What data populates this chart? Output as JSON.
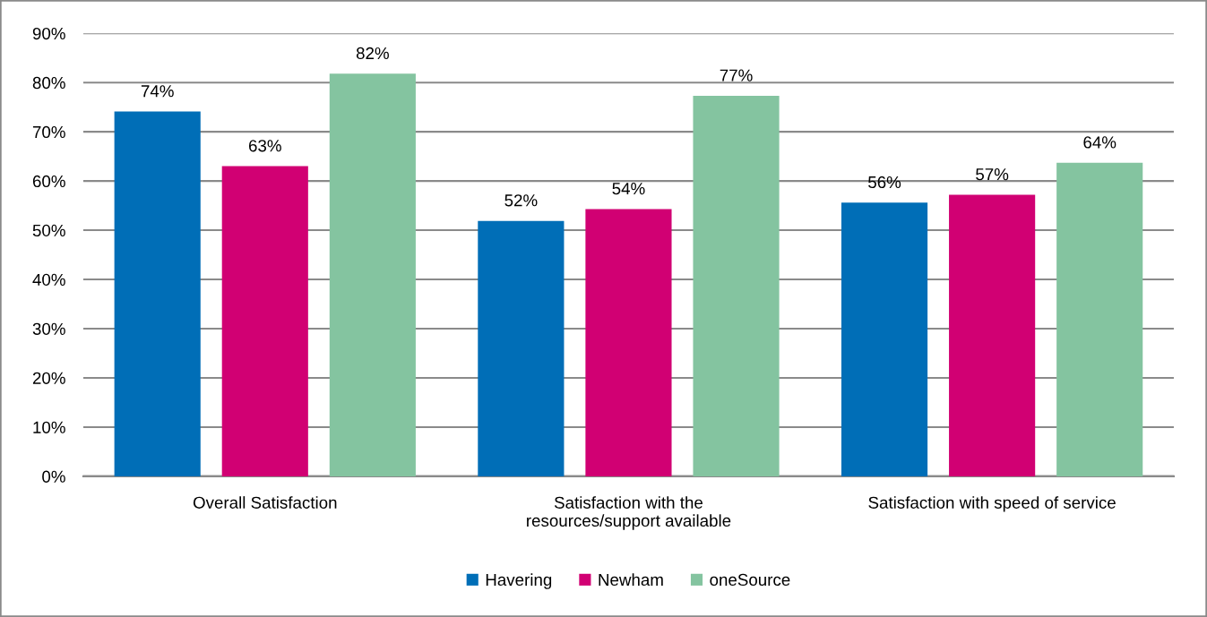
{
  "chart_data": {
    "type": "bar",
    "categories": [
      "Overall Satisfaction",
      "Satisfaction with the\nresources/support available",
      "Satisfaction with speed of service"
    ],
    "series": [
      {
        "name": "Havering",
        "color": "#006eb7",
        "values": [
          74.1,
          51.9,
          55.6
        ],
        "value_labels": [
          "74%",
          "52%",
          "56%"
        ]
      },
      {
        "name": "Newham",
        "color": "#d10073",
        "values": [
          63.0,
          54.3,
          57.2
        ],
        "value_labels": [
          "63%",
          "54%",
          "57%"
        ]
      },
      {
        "name": "oneSource",
        "color": "#84c4a0",
        "values": [
          81.8,
          77.3,
          63.7
        ],
        "value_labels": [
          "82%",
          "77%",
          "64%"
        ]
      }
    ],
    "ylim": [
      0,
      90
    ],
    "yticks": [
      {
        "value": 0,
        "label": "0%"
      },
      {
        "value": 10,
        "label": "10%"
      },
      {
        "value": 20,
        "label": "20%"
      },
      {
        "value": 30,
        "label": "30%"
      },
      {
        "value": 40,
        "label": "40%"
      },
      {
        "value": 50,
        "label": "50%"
      },
      {
        "value": 60,
        "label": "60%"
      },
      {
        "value": 70,
        "label": "70%"
      },
      {
        "value": 80,
        "label": "80%"
      },
      {
        "value": 90,
        "label": "90%"
      }
    ],
    "grid": "y",
    "legend": "bottom"
  }
}
